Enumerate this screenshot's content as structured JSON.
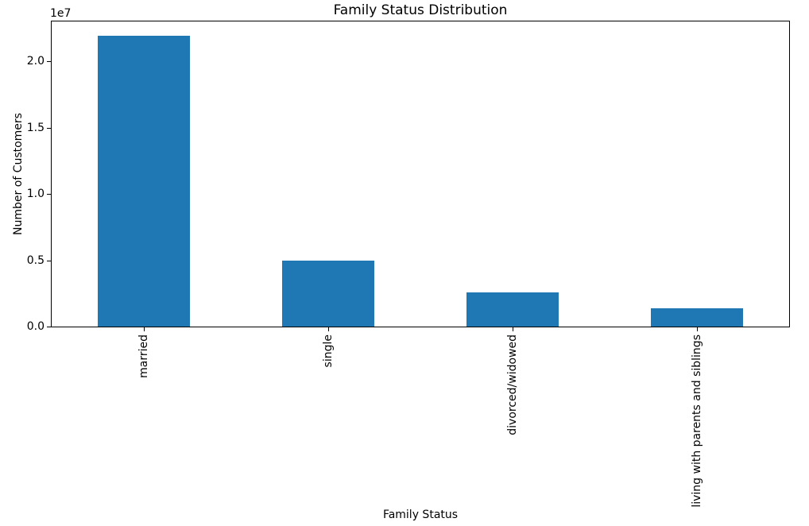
{
  "chart_data": {
    "type": "bar",
    "title": "Family Status Distribution",
    "xlabel": "Family Status",
    "ylabel": "Number of Customers",
    "categories": [
      "married",
      "single",
      "divorced/widowed",
      "living with parents and siblings"
    ],
    "values": [
      21900000,
      5000000,
      2550000,
      1400000
    ],
    "bar_color": "#1f77b4",
    "ylim": [
      0,
      23000000
    ],
    "yticks": [
      0,
      5000000,
      10000000,
      15000000,
      20000000
    ],
    "ytick_labels": [
      "0.0",
      "0.5",
      "1.0",
      "1.5",
      "2.0"
    ],
    "y_offset_text": "1e7",
    "xtick_rotation": 90,
    "grid": false,
    "legend": "none",
    "background_color": "#ffffff",
    "text_color": "#000000"
  }
}
